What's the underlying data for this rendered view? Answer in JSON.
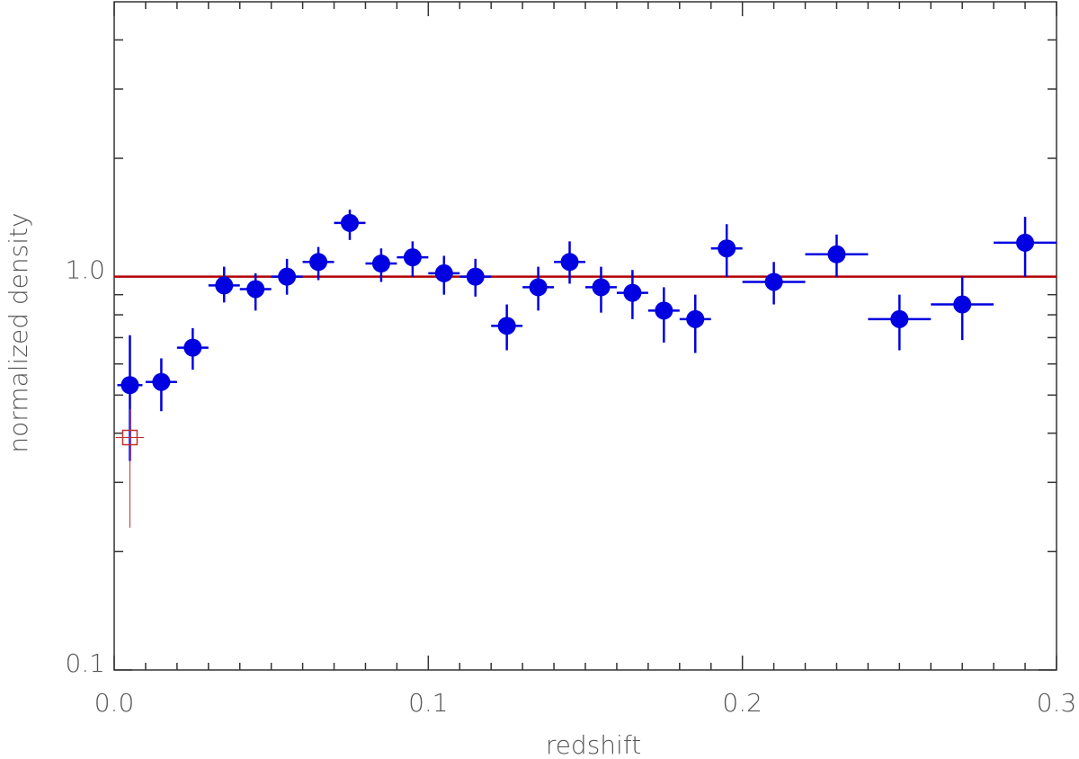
{
  "chart_data": {
    "type": "errorbar-scatter",
    "xlabel": "redshift",
    "ylabel": "normalized density",
    "xlim": [
      0,
      0.3
    ],
    "ylim": [
      0.1,
      5
    ],
    "ylog": true,
    "xticks": [
      {
        "value": 0,
        "label": "0.0"
      },
      0.1,
      0.2,
      0.3
    ],
    "xminorticks": [
      0.01,
      0.02,
      0.03,
      0.04,
      0.05,
      0.06,
      0.07,
      0.08,
      0.09,
      0.11,
      0.12,
      0.13,
      0.14,
      0.15,
      0.16,
      0.17,
      0.18,
      0.19,
      0.21,
      0.22,
      0.23,
      0.24,
      0.25,
      0.26,
      0.27,
      0.28,
      0.29
    ],
    "yticks": [
      0.1,
      {
        "value": 1,
        "label": "1.0"
      }
    ],
    "yminorticks": [
      0.2,
      0.3,
      0.4,
      0.5,
      0.6,
      0.7,
      0.8,
      0.9,
      2,
      3,
      4
    ],
    "hline": {
      "value": 1,
      "color": "#b00000"
    },
    "series": [
      {
        "color": "#0000e0",
        "marker": "circle",
        "x": [
          0.005,
          0.015,
          0.025,
          0.035,
          0.045,
          0.055,
          0.065,
          0.075,
          0.085,
          0.095,
          0.105,
          0.115,
          0.125,
          0.135,
          0.145,
          0.155,
          0.165,
          0.175,
          0.185,
          0.195,
          0.21,
          0.23,
          0.25,
          0.27,
          0.29
        ],
        "xerr": [
          0.004,
          0.005,
          0.005,
          0.005,
          0.005,
          0.005,
          0.005,
          0.005,
          0.005,
          0.005,
          0.005,
          0.005,
          0.005,
          0.005,
          0.005,
          0.005,
          0.005,
          0.005,
          0.005,
          0.005,
          0.01,
          0.01,
          0.01,
          0.01,
          0.01
        ],
        "values": [
          0.53,
          0.54,
          0.66,
          0.95,
          0.93,
          1.0,
          1.09,
          1.37,
          1.08,
          1.12,
          1.02,
          1.0,
          0.75,
          0.94,
          1.09,
          0.94,
          0.91,
          0.82,
          0.78,
          1.18,
          0.97,
          1.14,
          0.78,
          0.85,
          1.22
        ],
        "ylow": [
          0.34,
          0.455,
          0.58,
          0.86,
          0.82,
          0.9,
          0.98,
          1.24,
          0.97,
          1.0,
          0.9,
          0.89,
          0.65,
          0.82,
          0.96,
          0.81,
          0.78,
          0.68,
          0.64,
          1.0,
          0.85,
          1.0,
          0.65,
          0.69,
          1.0
        ],
        "yhigh": [
          0.71,
          0.62,
          0.74,
          1.06,
          1.02,
          1.11,
          1.19,
          1.48,
          1.18,
          1.23,
          1.13,
          1.11,
          0.85,
          1.06,
          1.23,
          1.06,
          1.04,
          0.94,
          0.9,
          1.36,
          1.09,
          1.28,
          0.9,
          1.0,
          1.42
        ]
      },
      {
        "color": "#c03030",
        "marker": "open-square",
        "x": [
          0.005
        ],
        "xerr": [
          0.0045
        ],
        "values": [
          0.39
        ],
        "ylow": [
          0.23
        ],
        "yhigh": [
          0.46
        ]
      }
    ]
  }
}
